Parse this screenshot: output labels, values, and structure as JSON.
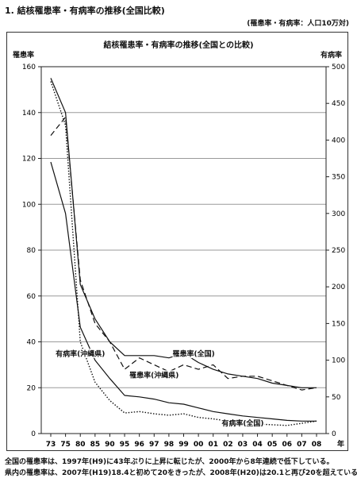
{
  "header": {
    "title": "1. 結核罹患率・有病率の推移(全国比較)",
    "unit_note": "(罹患率・有病率：人口10万対)"
  },
  "footnotes": [
    "全国の罹患率は、1997年(H9)に43年ぶりに上昇に転じたが、2000年から8年連続で低下している。",
    "県内の罹患率は、2007年(H19)18.4と初めて20をきったが、2008年(H20)は20.1と再び20を超えている。"
  ],
  "chart_data": {
    "type": "line",
    "title": "結核罹患率・有病率の推移(全国との比較)",
    "ylabel": "罹患率",
    "y2label": "有病率",
    "x_unit": "年",
    "categories": [
      "73",
      "75",
      "80",
      "85",
      "90",
      "95",
      "96",
      "97",
      "98",
      "99",
      "00",
      "01",
      "02",
      "03",
      "04",
      "05",
      "06",
      "07",
      "08"
    ],
    "ylim": [
      0,
      160
    ],
    "yticks": [
      0,
      20,
      40,
      60,
      80,
      100,
      120,
      140,
      160
    ],
    "y2lim": [
      0,
      500
    ],
    "y2ticks": [
      0,
      50,
      100,
      150,
      200,
      250,
      300,
      350,
      400,
      450,
      500
    ],
    "grid": "horizontal",
    "series": [
      {
        "name": "罹患率(全国)",
        "axis": "left",
        "style": "solid",
        "values": [
          155,
          140,
          65,
          50,
          40,
          34,
          34,
          34,
          33,
          35,
          31,
          28,
          26,
          25,
          24,
          22,
          21,
          20,
          20
        ]
      },
      {
        "name": "罹患率(沖縄県)",
        "axis": "left",
        "style": "dashed",
        "values": [
          130,
          138,
          67,
          48,
          40,
          28,
          33,
          30,
          27,
          30,
          28,
          30,
          24,
          25,
          25,
          23,
          21,
          19,
          20
        ]
      },
      {
        "name": "有病率(全国)",
        "axis": "right",
        "style": "solid",
        "values": [
          370,
          300,
          145,
          100,
          75,
          52,
          50,
          47,
          42,
          40,
          35,
          30,
          27,
          24,
          22,
          20,
          18,
          17,
          17
        ]
      },
      {
        "name": "有病率(沖縄県)",
        "axis": "right",
        "style": "dotted",
        "values": [
          480,
          420,
          125,
          70,
          45,
          28,
          30,
          27,
          25,
          27,
          22,
          20,
          17,
          15,
          13,
          12,
          11,
          14,
          17
        ]
      }
    ]
  }
}
